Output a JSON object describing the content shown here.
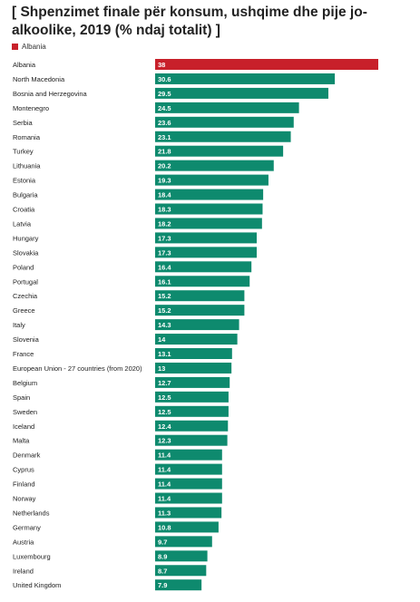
{
  "chart_data": {
    "type": "bar",
    "orientation": "horizontal",
    "title": "[ Shpenzimet finale për konsum, ushqime dhe pije jo-alkoolike, 2019 (% ndaj totalit) ]",
    "legend": [
      {
        "name": "Albania",
        "color": "#c8202a"
      }
    ],
    "legend_position": "top-left",
    "highlight_color": "#c8202a",
    "bar_color": "#0e8a6e",
    "xlim": [
      0,
      38
    ],
    "grid": false,
    "categories": [
      "Albania",
      "North Macedonia",
      "Bosnia and Herzegovina",
      "Montenegro",
      "Serbia",
      "Romania",
      "Turkey",
      "Lithuania",
      "Estonia",
      "Bulgaria",
      "Croatia",
      "Latvia",
      "Hungary",
      "Slovakia",
      "Poland",
      "Portugal",
      "Czechia",
      "Greece",
      "Italy",
      "Slovenia",
      "France",
      "European Union - 27 countries (from 2020)",
      "Belgium",
      "Spain",
      "Sweden",
      "Iceland",
      "Malta",
      "Denmark",
      "Cyprus",
      "Finland",
      "Norway",
      "Netherlands",
      "Germany",
      "Austria",
      "Luxembourg",
      "Ireland",
      "United Kingdom"
    ],
    "values": [
      38,
      30.6,
      29.5,
      24.5,
      23.6,
      23.1,
      21.8,
      20.2,
      19.3,
      18.4,
      18.3,
      18.2,
      17.3,
      17.3,
      16.4,
      16.1,
      15.2,
      15.2,
      14.3,
      14,
      13.1,
      13,
      12.7,
      12.5,
      12.5,
      12.4,
      12.3,
      11.4,
      11.4,
      11.4,
      11.4,
      11.3,
      10.8,
      9.7,
      8.9,
      8.7,
      7.9
    ],
    "highlighted": [
      "Albania"
    ]
  }
}
